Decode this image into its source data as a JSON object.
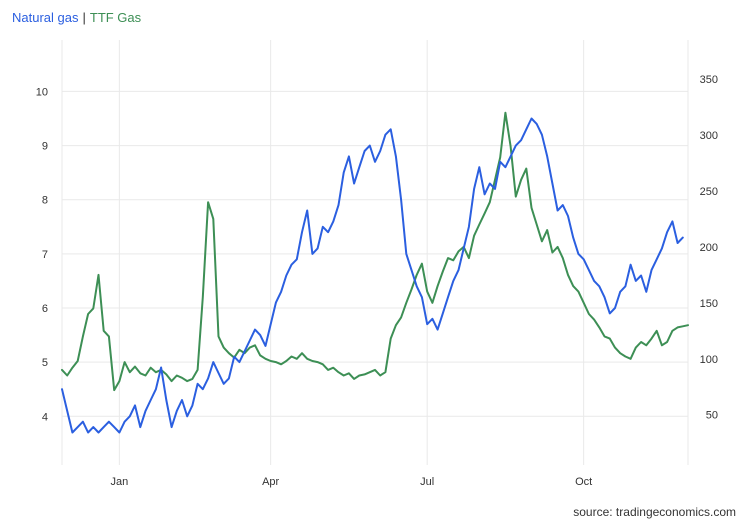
{
  "legend": {
    "series1": "Natural gas",
    "separator": "|",
    "series2": "TTF Gas"
  },
  "source": "source: tradingeconomics.com",
  "colors": {
    "series1": "#2b5fe0",
    "series2": "#3d8f55",
    "grid": "#e9e9e9",
    "text": "#333333"
  },
  "chart_data": {
    "type": "line",
    "title": "",
    "x_ticks": [
      {
        "label": "Jan",
        "index": 11
      },
      {
        "label": "Apr",
        "index": 40
      },
      {
        "label": "Jul",
        "index": 70
      },
      {
        "label": "Oct",
        "index": 100
      }
    ],
    "y_left": {
      "ticks": [
        4,
        5,
        6,
        7,
        8,
        9,
        10
      ],
      "ylim": [
        3.1,
        10.95
      ]
    },
    "y_right": {
      "ticks": [
        50,
        100,
        150,
        200,
        250,
        300,
        350
      ],
      "ylim": [
        5,
        385
      ]
    },
    "grid": true,
    "series": [
      {
        "name": "Natural gas",
        "axis": "left",
        "values": [
          4.5,
          4.1,
          3.7,
          3.8,
          3.9,
          3.7,
          3.8,
          3.7,
          3.8,
          3.9,
          3.8,
          3.7,
          3.9,
          4.0,
          4.2,
          3.8,
          4.1,
          4.3,
          4.5,
          4.9,
          4.3,
          3.8,
          4.1,
          4.3,
          4.0,
          4.2,
          4.6,
          4.5,
          4.7,
          5.0,
          4.8,
          4.6,
          4.7,
          5.1,
          5.0,
          5.2,
          5.4,
          5.6,
          5.5,
          5.3,
          5.7,
          6.1,
          6.3,
          6.6,
          6.8,
          6.9,
          7.4,
          7.8,
          7.0,
          7.1,
          7.5,
          7.4,
          7.6,
          7.9,
          8.5,
          8.8,
          8.3,
          8.6,
          8.9,
          9.0,
          8.7,
          8.9,
          9.2,
          9.3,
          8.8,
          8.0,
          7.0,
          6.7,
          6.4,
          6.2,
          5.7,
          5.8,
          5.6,
          5.9,
          6.2,
          6.5,
          6.7,
          7.1,
          7.5,
          8.2,
          8.6,
          8.1,
          8.3,
          8.2,
          8.7,
          8.6,
          8.8,
          9.0,
          9.1,
          9.3,
          9.5,
          9.4,
          9.2,
          8.8,
          8.3,
          7.8,
          7.9,
          7.7,
          7.3,
          7.0,
          6.9,
          6.7,
          6.5,
          6.4,
          6.2,
          5.9,
          6.0,
          6.3,
          6.4,
          6.8,
          6.5,
          6.6,
          6.3,
          6.7,
          6.9,
          7.1,
          7.4,
          7.6,
          7.2,
          7.3
        ]
      },
      {
        "name": "TTF Gas",
        "axis": "right",
        "values": [
          90,
          85,
          92,
          98,
          120,
          140,
          145,
          175,
          125,
          120,
          72,
          80,
          97,
          88,
          93,
          87,
          85,
          92,
          88,
          90,
          86,
          80,
          85,
          83,
          80,
          82,
          90,
          155,
          240,
          225,
          120,
          110,
          105,
          101,
          108,
          105,
          110,
          112,
          103,
          100,
          98,
          97,
          95,
          98,
          102,
          100,
          105,
          100,
          98,
          97,
          95,
          90,
          92,
          88,
          85,
          87,
          82,
          85,
          86,
          88,
          90,
          85,
          88,
          118,
          130,
          137,
          150,
          162,
          175,
          185,
          160,
          150,
          165,
          178,
          190,
          188,
          196,
          200,
          190,
          210,
          220,
          230,
          240,
          260,
          280,
          320,
          290,
          245,
          260,
          270,
          235,
          220,
          205,
          215,
          195,
          200,
          190,
          175,
          165,
          160,
          150,
          140,
          135,
          128,
          120,
          118,
          110,
          105,
          102,
          100,
          110,
          115,
          112,
          118,
          125,
          112,
          115,
          125,
          128,
          129,
          130
        ]
      }
    ]
  }
}
